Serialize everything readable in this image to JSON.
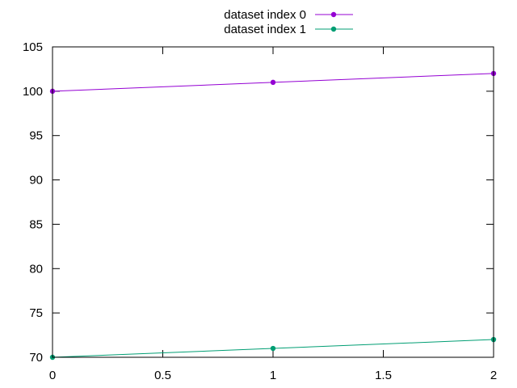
{
  "chart_data": {
    "type": "line",
    "title": "",
    "xlabel": "",
    "ylabel": "",
    "xlim": [
      0,
      2
    ],
    "ylim": [
      70,
      105
    ],
    "x_ticks": [
      "0",
      "0.5",
      "1",
      "1.5",
      "2"
    ],
    "y_ticks": [
      "70",
      "75",
      "80",
      "85",
      "90",
      "95",
      "100",
      "105"
    ],
    "grid": false,
    "legend_position": "top-center",
    "x": [
      0,
      1,
      2
    ],
    "series": [
      {
        "name": "dataset index 0",
        "values": [
          100,
          101,
          102
        ],
        "color": "#9400d3"
      },
      {
        "name": "dataset index 1",
        "values": [
          70,
          71,
          72
        ],
        "color": "#009e73"
      }
    ]
  }
}
